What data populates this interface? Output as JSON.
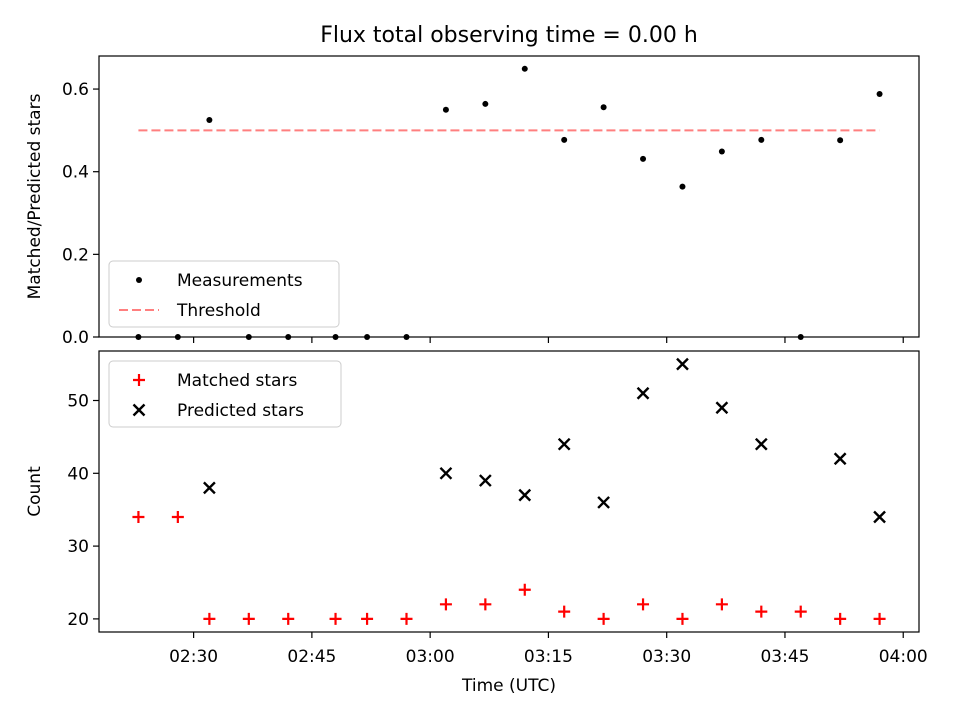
{
  "chart_data": {
    "title": "Flux total observing time = 0.00 h",
    "xlabel": "Time (UTC)",
    "x_tick_labels": [
      "02:30",
      "02:45",
      "03:00",
      "03:15",
      "03:30",
      "03:45",
      "04:00"
    ],
    "x_tick_times": [
      "02:30",
      "02:45",
      "03:00",
      "03:15",
      "03:30",
      "03:45",
      "04:00"
    ],
    "xlim": [
      "02:18",
      "04:02"
    ],
    "panels": [
      {
        "type": "scatter",
        "ylabel": "Matched/Predicted stars",
        "ylim": [
          0,
          0.68
        ],
        "y_ticks": [
          "0.0",
          "0.2",
          "0.4",
          "0.6"
        ],
        "y_tick_values": [
          0.0,
          0.2,
          0.4,
          0.6
        ],
        "legend_position": "lower-left",
        "series": [
          {
            "name": "Measurements",
            "marker": "dot",
            "color": "#000000",
            "x": [
              "02:23",
              "02:28",
              "02:32",
              "02:37",
              "02:42",
              "02:48",
              "02:52",
              "02:57",
              "03:02",
              "03:07",
              "03:12",
              "03:17",
              "03:22",
              "03:27",
              "03:32",
              "03:37",
              "03:42",
              "03:47",
              "03:52",
              "03:57"
            ],
            "y": [
              0.0,
              0.0,
              0.525,
              0.0,
              0.0,
              0.0,
              0.0,
              0.0,
              0.55,
              0.564,
              0.649,
              0.477,
              0.556,
              0.431,
              0.364,
              0.449,
              0.477,
              0.0,
              0.476,
              0.588
            ]
          },
          {
            "name": "Threshold",
            "type": "line",
            "style": "dashed",
            "color": "#ff7f7f",
            "x": [
              "02:23",
              "03:57"
            ],
            "y": [
              0.5,
              0.5
            ]
          }
        ]
      },
      {
        "type": "scatter",
        "ylabel": "Count",
        "ylim": [
          18.2,
          56.8
        ],
        "y_ticks": [
          "20",
          "30",
          "40",
          "50"
        ],
        "y_tick_values": [
          20,
          30,
          40,
          50
        ],
        "legend_position": "upper-left",
        "series": [
          {
            "name": "Matched stars",
            "marker": "plus",
            "color": "#ff0000",
            "x": [
              "02:23",
              "02:28",
              "02:32",
              "02:37",
              "02:42",
              "02:48",
              "02:52",
              "02:57",
              "03:02",
              "03:07",
              "03:12",
              "03:17",
              "03:22",
              "03:27",
              "03:32",
              "03:37",
              "03:42",
              "03:47",
              "03:52",
              "03:57"
            ],
            "y": [
              34,
              34,
              20,
              20,
              20,
              20,
              20,
              20,
              22,
              22,
              24,
              21,
              20,
              22,
              20,
              22,
              21,
              21,
              20,
              20
            ]
          },
          {
            "name": "Predicted stars",
            "marker": "x",
            "color": "#000000",
            "x": [
              "02:32",
              "03:02",
              "03:07",
              "03:12",
              "03:17",
              "03:22",
              "03:27",
              "03:32",
              "03:37",
              "03:42",
              "03:52",
              "03:57"
            ],
            "y": [
              38,
              40,
              39,
              37,
              44,
              36,
              51,
              55,
              49,
              44,
              42,
              34
            ]
          }
        ]
      }
    ]
  }
}
